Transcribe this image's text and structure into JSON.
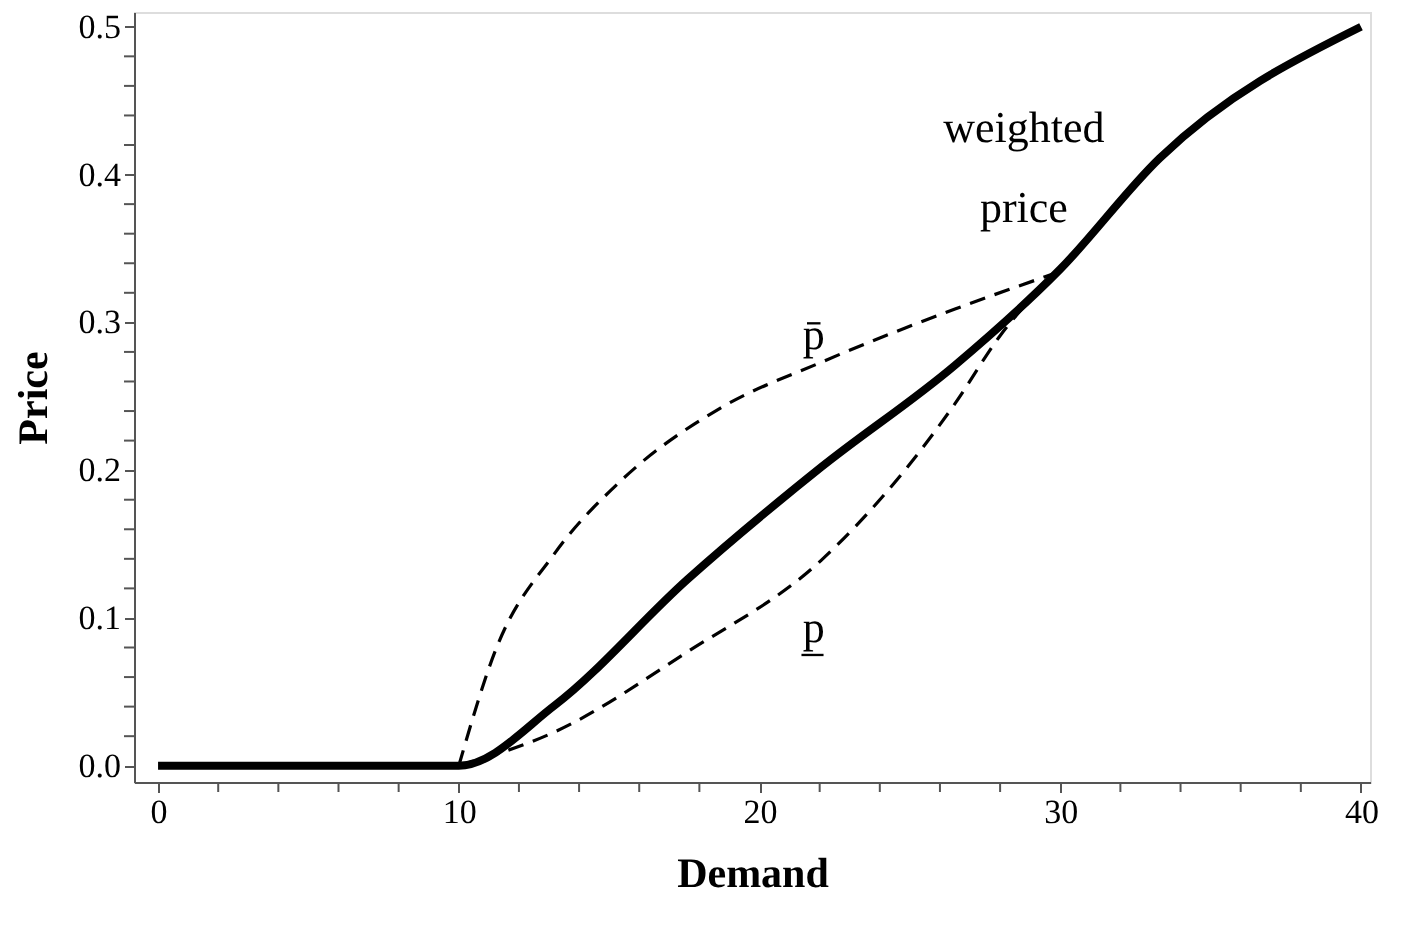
{
  "chart_data": {
    "type": "line",
    "xlabel": "Demand",
    "ylabel": "Price",
    "xlim": [
      -0.8,
      40.3
    ],
    "ylim": [
      -0.011,
      0.51
    ],
    "xticks": [
      0,
      {
        "value": 2,
        "label": null
      },
      {
        "value": 4,
        "label": null
      },
      {
        "value": 6,
        "label": null
      },
      {
        "value": 8,
        "label": null
      },
      10,
      {
        "value": 12,
        "label": null
      },
      {
        "value": 14,
        "label": null
      },
      {
        "value": 16,
        "label": null
      },
      {
        "value": 18,
        "label": null
      },
      20,
      {
        "value": 22,
        "label": null
      },
      {
        "value": 24,
        "label": null
      },
      {
        "value": 26,
        "label": null
      },
      {
        "value": 28,
        "label": null
      },
      30,
      {
        "value": 32,
        "label": null
      },
      {
        "value": 34,
        "label": null
      },
      {
        "value": 36,
        "label": null
      },
      {
        "value": 38,
        "label": null
      },
      40
    ],
    "yticks": [
      {
        "value": 0,
        "label": "0.0"
      },
      {
        "value": 0.02,
        "label": null
      },
      {
        "value": 0.04,
        "label": null
      },
      {
        "value": 0.06,
        "label": null
      },
      {
        "value": 0.08,
        "label": null
      },
      0.1,
      {
        "value": 0.12,
        "label": null
      },
      {
        "value": 0.14,
        "label": null
      },
      {
        "value": 0.16,
        "label": null
      },
      {
        "value": 0.18,
        "label": null
      },
      0.2,
      {
        "value": 0.22,
        "label": null
      },
      {
        "value": 0.24,
        "label": null
      },
      {
        "value": 0.26,
        "label": null
      },
      {
        "value": 0.28,
        "label": null
      },
      0.3,
      {
        "value": 0.32,
        "label": null
      },
      {
        "value": 0.34,
        "label": null
      },
      {
        "value": 0.36,
        "label": null
      },
      {
        "value": 0.38,
        "label": null
      },
      0.4,
      {
        "value": 0.42,
        "label": null
      },
      {
        "value": 0.44,
        "label": null
      },
      {
        "value": 0.46,
        "label": null
      },
      {
        "value": 0.48,
        "label": null
      },
      0.5
    ],
    "grid": false,
    "marker": "none",
    "series": [
      {
        "color": "#000000",
        "line_style": "solid",
        "x": [
          0,
          10,
          13.2,
          17.6,
          22.05,
          26.5,
          30,
          33.3,
          40
        ],
        "values": [
          0,
          0,
          0.041,
          0.126,
          0.202,
          0.271,
          0.336,
          0.411,
          0.5
        ]
      },
      {
        "color": "#000000",
        "line_style": "dashed",
        "x": [
          10,
          11.2,
          13.2,
          15.4,
          18.7,
          22.05,
          26.5,
          29.8
        ],
        "values": [
          0,
          0.077,
          0.144,
          0.193,
          0.242,
          0.273,
          0.309,
          0.333
        ]
      },
      {
        "color": "#000000",
        "line_style": "dashed",
        "x": [
          10,
          13.2,
          17.6,
          22.05,
          26.5,
          28,
          30
        ],
        "values": [
          0,
          0.023,
          0.077,
          0.139,
          0.245,
          0.291,
          0.336
        ]
      }
    ],
    "annotations": [
      "weighted price",
      "p̄",
      "p̲"
    ]
  }
}
